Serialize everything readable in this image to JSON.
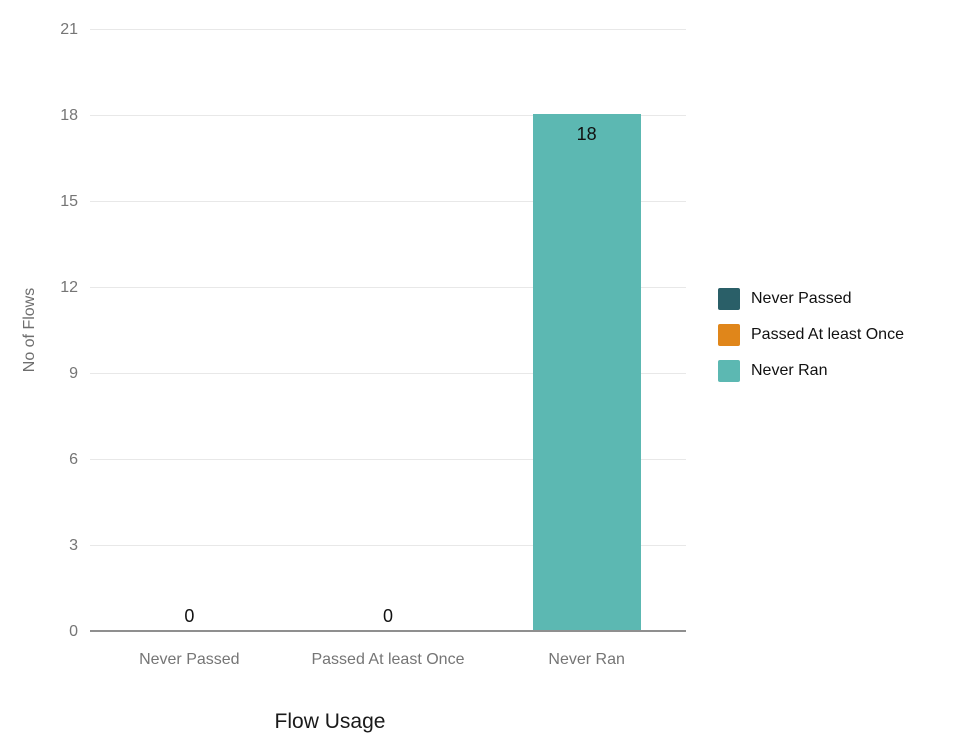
{
  "chart_data": {
    "type": "bar",
    "categories": [
      "Never Passed",
      "Passed At least Once",
      "Never Ran"
    ],
    "values": [
      0,
      0,
      18
    ],
    "data_labels": [
      "0",
      "0",
      "18"
    ],
    "bar_colors": [
      "#2a5f68",
      "#e0861a",
      "#5cb8b2"
    ],
    "title": "",
    "xlabel": "Flow Usage",
    "ylabel": "No of Flows",
    "yticks": [
      0,
      3,
      6,
      9,
      12,
      15,
      18,
      21
    ],
    "ylim": [
      0,
      21
    ],
    "grid": true,
    "legend_position": "right",
    "legend": [
      {
        "label": "Never Passed",
        "color": "#2a5f68"
      },
      {
        "label": "Passed At least Once",
        "color": "#e0861a"
      },
      {
        "label": "Never Ran",
        "color": "#5cb8b2"
      }
    ],
    "colors": {
      "gridline": "#e8e8e8",
      "axis_line": "#8f8f8f",
      "tick_label": "#757575",
      "data_label": "#111111",
      "background": "#ffffff"
    }
  }
}
